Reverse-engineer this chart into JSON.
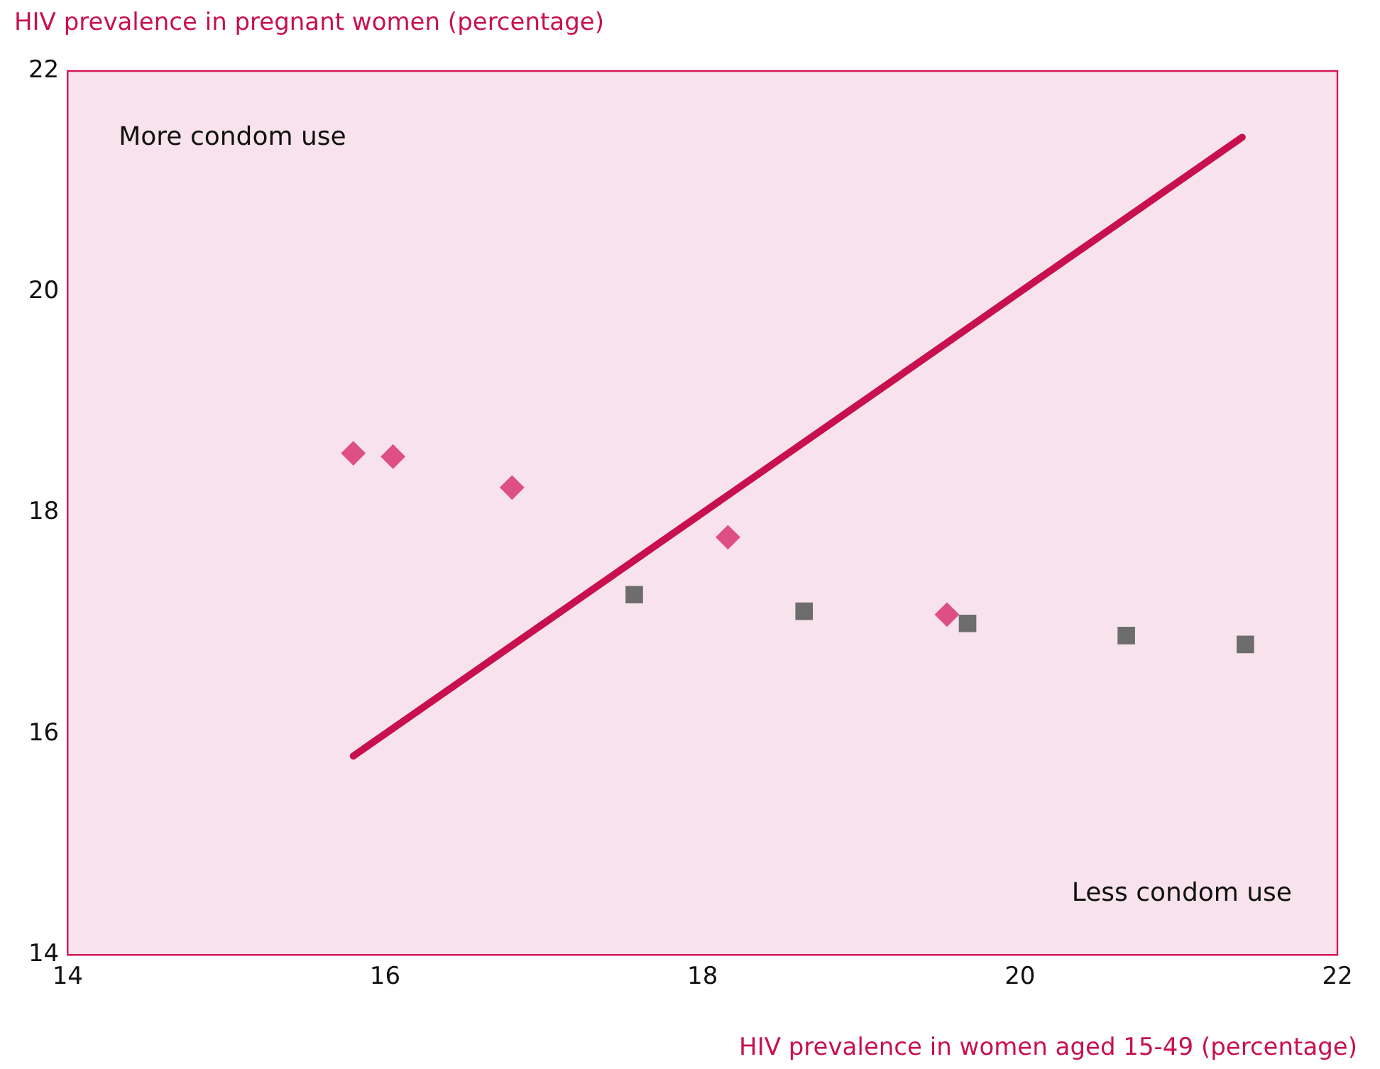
{
  "chart_data": {
    "type": "scatter",
    "xlabel": "HIV prevalence in women aged 15-49 (percentage)",
    "ylabel": "HIV prevalence in pregnant women (percentage)",
    "xlim": [
      14,
      22
    ],
    "xticks": [
      14,
      16,
      18,
      20,
      22
    ],
    "ylim": [
      14,
      22
    ],
    "yticks": [
      14,
      16,
      18,
      20,
      22
    ],
    "annotations": [
      "More condom use",
      "Less condom use"
    ],
    "series": [
      {
        "marker": "diamond",
        "color": "#de4f86",
        "x": [
          15.8,
          16.05,
          16.8,
          18.16,
          19.54
        ],
        "values": [
          18.54,
          18.51,
          18.23,
          17.78,
          17.08
        ]
      },
      {
        "marker": "square",
        "color": "#6d6d6d",
        "x": [
          17.57,
          18.64,
          19.67,
          20.67,
          21.42
        ],
        "values": [
          17.26,
          17.11,
          17.0,
          16.89,
          16.81
        ]
      },
      {
        "type": "line",
        "marker": "none",
        "color": "#c8104f",
        "x": [
          15.8,
          21.4
        ],
        "values": [
          15.8,
          21.4
        ]
      }
    ]
  }
}
